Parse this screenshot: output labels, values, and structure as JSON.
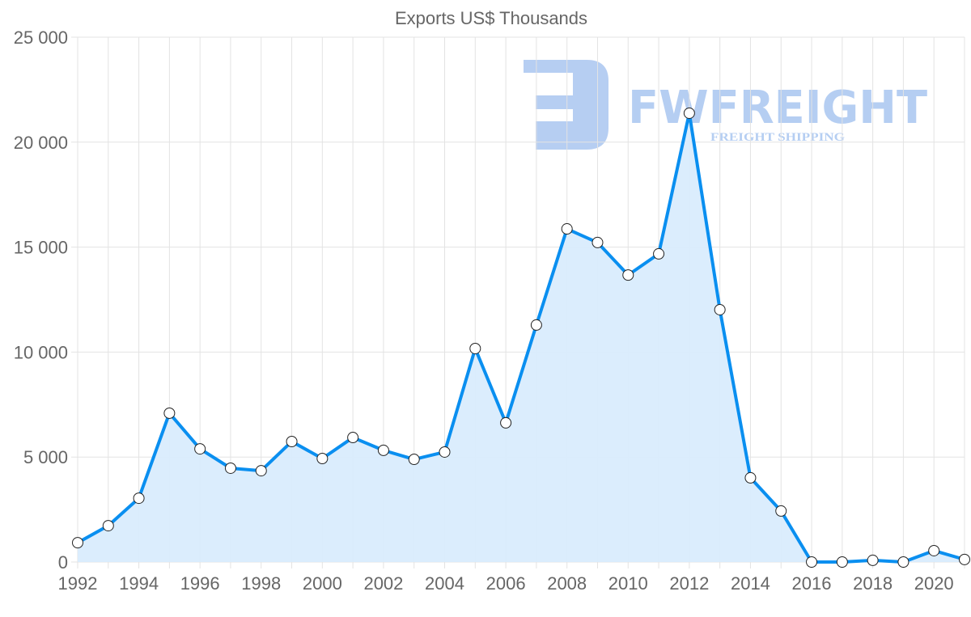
{
  "chart_data": {
    "type": "line",
    "title": "Exports US$ Thousands",
    "xlabel": "",
    "ylabel": "",
    "x": [
      1992,
      1993,
      1994,
      1995,
      1996,
      1997,
      1998,
      1999,
      2000,
      2001,
      2002,
      2003,
      2004,
      2005,
      2006,
      2007,
      2008,
      2009,
      2010,
      2011,
      2012,
      2013,
      2014,
      2015,
      2016,
      2017,
      2018,
      2019,
      2020,
      2021
    ],
    "series": [
      {
        "name": "Exports",
        "values": [
          920,
          1730,
          3040,
          7090,
          5390,
          4470,
          4350,
          5740,
          4930,
          5930,
          5320,
          4890,
          5240,
          10170,
          6630,
          11290,
          15870,
          15220,
          13670,
          14680,
          21380,
          12020,
          4010,
          2430,
          0,
          0,
          80,
          0,
          540,
          120
        ]
      }
    ],
    "ylim": [
      0,
      25000
    ],
    "yticks": [
      0,
      5000,
      10000,
      15000,
      20000,
      25000
    ],
    "ytick_labels": [
      "0",
      "5 000",
      "10 000",
      "15 000",
      "20 000",
      "25 000"
    ],
    "xtick_labels": [
      "1992",
      "1994",
      "1996",
      "1998",
      "2000",
      "2002",
      "2004",
      "2006",
      "2008",
      "2010",
      "2012",
      "2014",
      "2016",
      "2018",
      "2020"
    ],
    "grid": true,
    "legend": "none",
    "colors": {
      "line": "#0a8ff0",
      "fill": "#d9ecfd",
      "grid": "#e3e3e3",
      "watermark": "#a9c6f0"
    }
  },
  "watermark": {
    "brand": "FWFREIGHT",
    "tagline": "FREIGHT SHIPPING"
  }
}
